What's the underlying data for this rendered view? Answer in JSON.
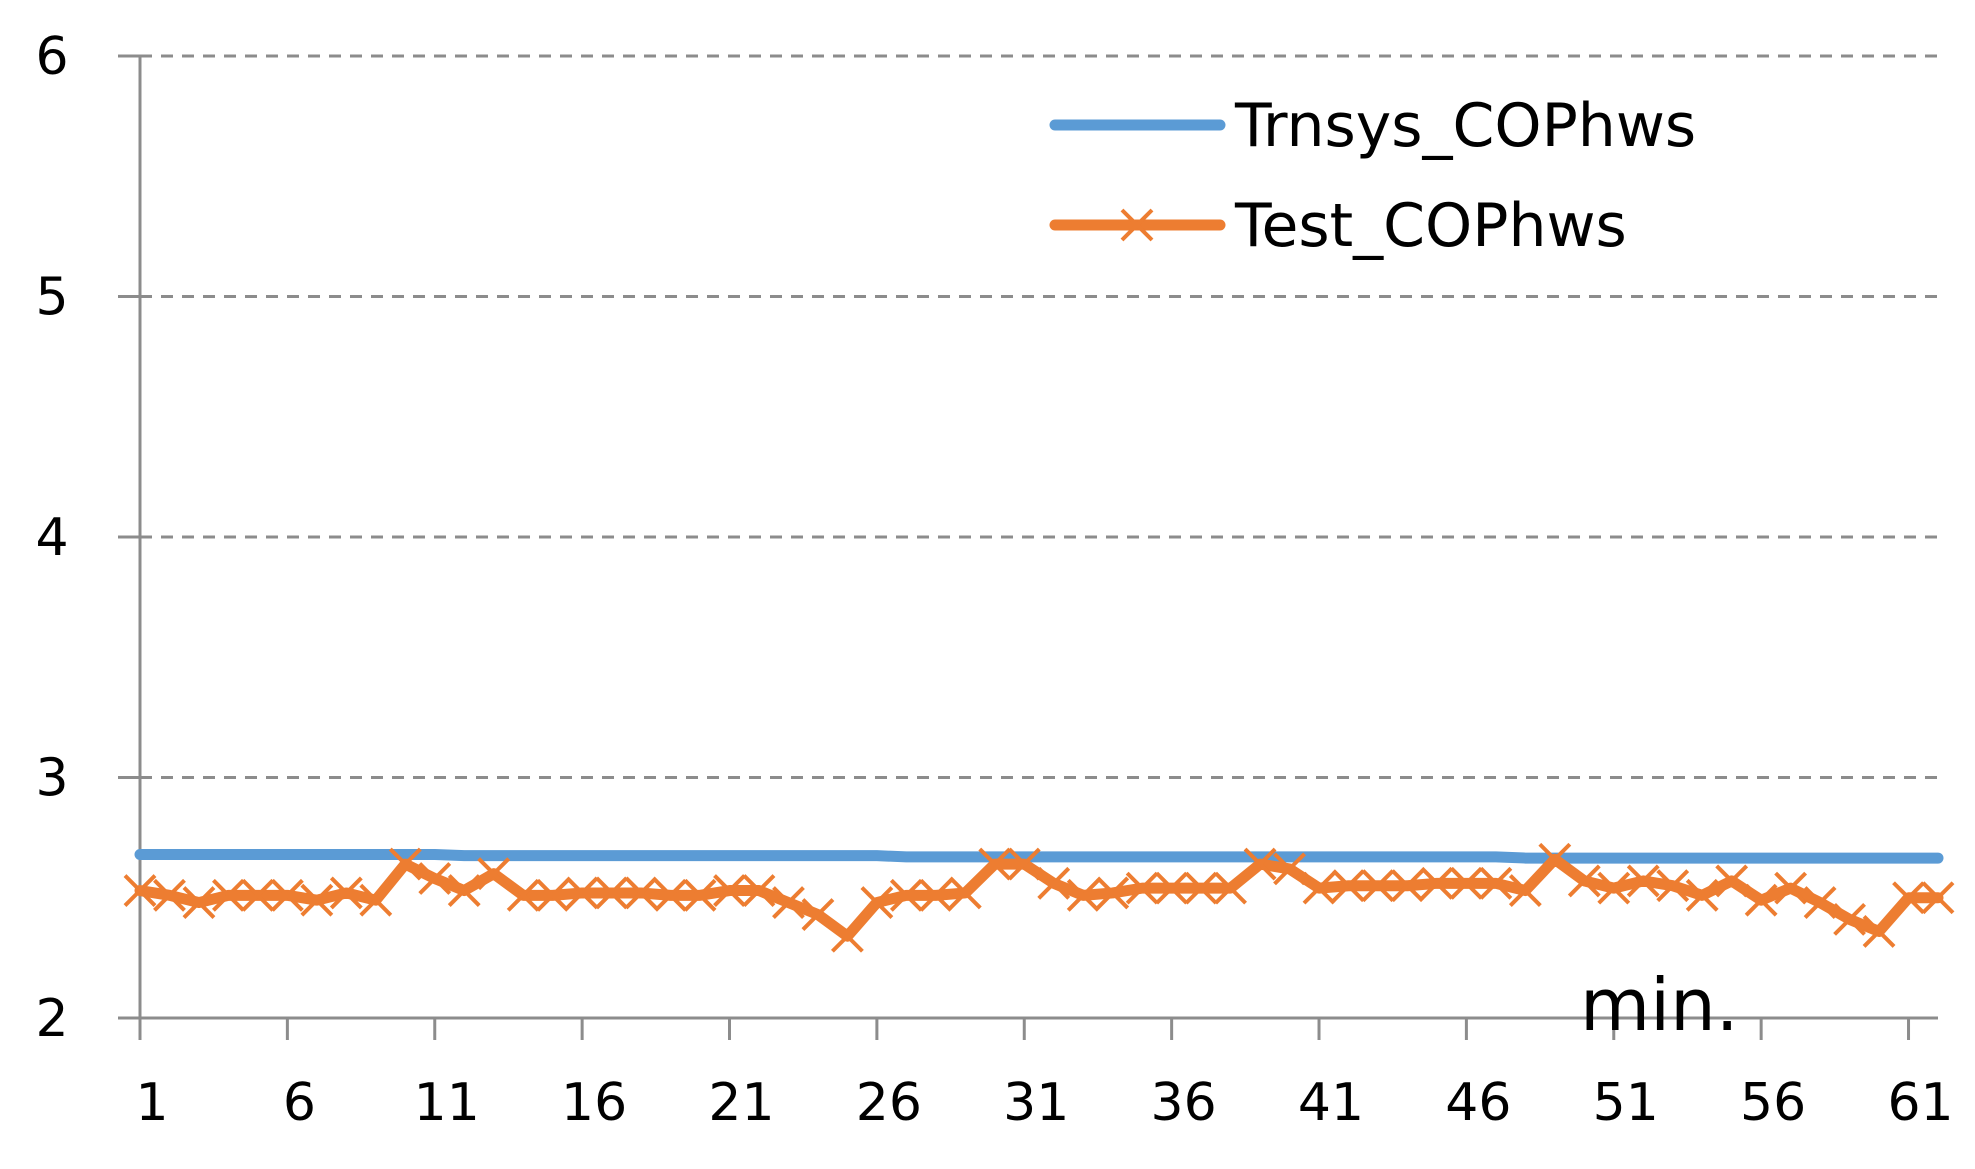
{
  "chart_data": {
    "type": "line",
    "x": [
      1,
      2,
      3,
      4,
      5,
      6,
      7,
      8,
      9,
      10,
      11,
      12,
      13,
      14,
      15,
      16,
      17,
      18,
      19,
      20,
      21,
      22,
      23,
      24,
      25,
      26,
      27,
      28,
      29,
      30,
      31,
      32,
      33,
      34,
      35,
      36,
      37,
      38,
      39,
      40,
      41,
      42,
      43,
      44,
      45,
      46,
      47,
      48,
      49,
      50,
      51,
      52,
      53,
      54,
      55,
      56,
      57,
      58,
      59,
      60,
      61,
      62
    ],
    "x_tick_labels": [
      "1",
      "6",
      "11",
      "16",
      "21",
      "26",
      "31",
      "36",
      "41",
      "46",
      "51",
      "56",
      "61"
    ],
    "y_tick_labels": [
      "2",
      "3",
      "4",
      "5",
      "6"
    ],
    "ylim": [
      2,
      6
    ],
    "xlim": [
      1,
      62
    ],
    "xlabel": "min.",
    "ylabel": "",
    "title": "",
    "grid": "horizontal-dashed",
    "legend_position": "top-right",
    "series": [
      {
        "name": "Trnsys_COPhws",
        "color": "#5B9BD5",
        "marker": "none",
        "values": [
          2.68,
          2.68,
          2.68,
          2.68,
          2.68,
          2.68,
          2.68,
          2.68,
          2.68,
          2.68,
          2.68,
          2.675,
          2.675,
          2.675,
          2.675,
          2.675,
          2.675,
          2.675,
          2.675,
          2.675,
          2.675,
          2.675,
          2.675,
          2.675,
          2.675,
          2.675,
          2.67,
          2.67,
          2.67,
          2.67,
          2.67,
          2.67,
          2.67,
          2.67,
          2.67,
          2.67,
          2.67,
          2.67,
          2.67,
          2.67,
          2.67,
          2.67,
          2.67,
          2.67,
          2.67,
          2.67,
          2.67,
          2.665,
          2.665,
          2.665,
          2.665,
          2.665,
          2.665,
          2.665,
          2.665,
          2.665,
          2.665,
          2.665,
          2.665,
          2.665,
          2.665,
          2.665
        ]
      },
      {
        "name": "Test_COPhws",
        "color": "#ED7D31",
        "marker": "x",
        "values": [
          2.53,
          2.51,
          2.48,
          2.51,
          2.51,
          2.51,
          2.49,
          2.52,
          2.49,
          2.64,
          2.58,
          2.53,
          2.6,
          2.51,
          2.51,
          2.52,
          2.52,
          2.52,
          2.51,
          2.51,
          2.53,
          2.53,
          2.48,
          2.43,
          2.34,
          2.48,
          2.51,
          2.51,
          2.52,
          2.64,
          2.64,
          2.56,
          2.51,
          2.52,
          2.54,
          2.54,
          2.54,
          2.54,
          2.64,
          2.62,
          2.54,
          2.55,
          2.55,
          2.55,
          2.56,
          2.56,
          2.56,
          2.53,
          2.66,
          2.57,
          2.54,
          2.57,
          2.55,
          2.51,
          2.57,
          2.49,
          2.54,
          2.48,
          2.41,
          2.36,
          2.5,
          2.5
        ]
      }
    ]
  }
}
